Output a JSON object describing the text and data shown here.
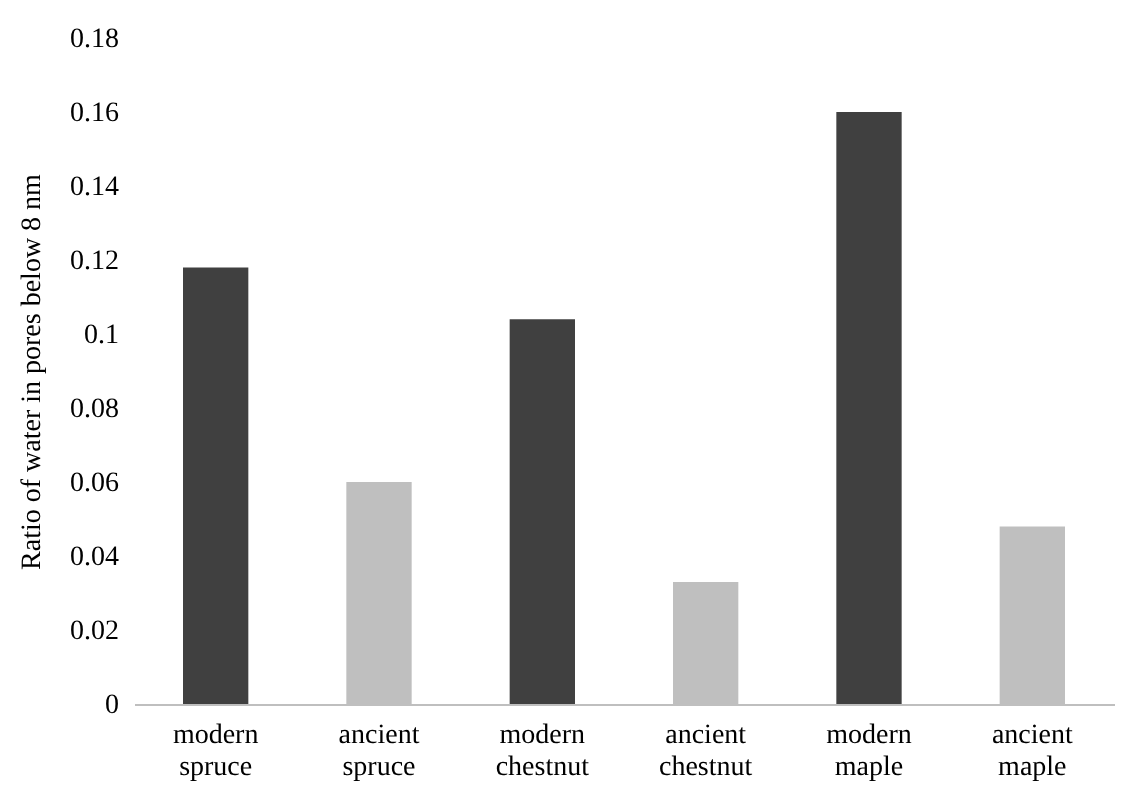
{
  "chart_data": {
    "type": "bar",
    "ylabel": "Ratio of water in pores below 8 nm",
    "categories": [
      "modern spruce",
      "ancient spruce",
      "modern chestnut",
      "ancient chestnut",
      "modern maple",
      "ancient maple"
    ],
    "values": [
      0.118,
      0.06,
      0.104,
      0.033,
      0.16,
      0.048
    ],
    "colors": [
      "#404040",
      "#bfbfbf",
      "#404040",
      "#bfbfbf",
      "#404040",
      "#bfbfbf"
    ],
    "ylim": [
      0,
      0.18
    ],
    "yticks": [
      0,
      0.02,
      0.04,
      0.06,
      0.08,
      0.1,
      0.12,
      0.14,
      0.16,
      0.18
    ],
    "grid": false
  }
}
